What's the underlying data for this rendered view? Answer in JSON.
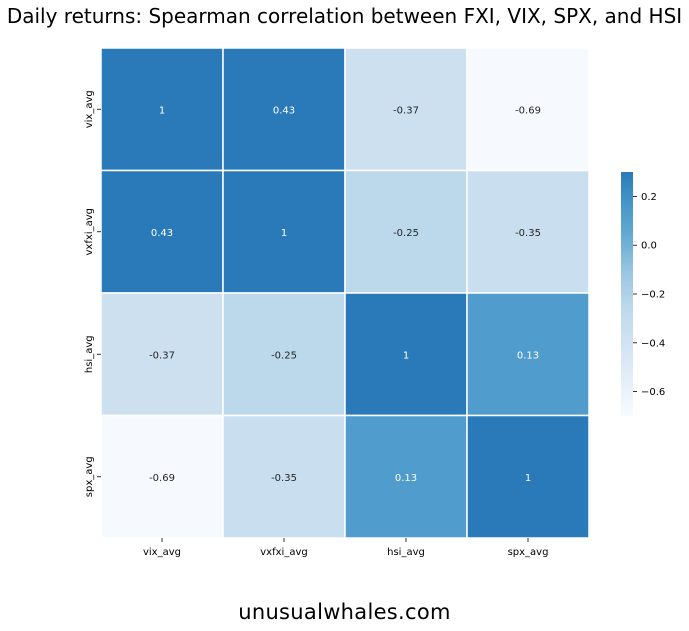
{
  "title": "Daily returns: Spearman correlation between FXI, VIX, SPX, and HSI",
  "footer": "unusualwhales.com",
  "chart_data": {
    "type": "heatmap",
    "title": "Daily returns: Spearman correlation between FXI, VIX, SPX, and HSI",
    "x_labels": [
      "vix_avg",
      "vxfxi_avg",
      "hsi_avg",
      "spx_avg"
    ],
    "y_labels": [
      "vix_avg",
      "vxfxi_avg",
      "hsi_avg",
      "spx_avg"
    ],
    "values": [
      [
        1,
        0.43,
        -0.37,
        -0.69
      ],
      [
        0.43,
        1,
        -0.25,
        -0.35
      ],
      [
        -0.37,
        -0.25,
        1,
        0.13
      ],
      [
        -0.69,
        -0.35,
        0.13,
        1
      ]
    ],
    "colorbar": {
      "vmin": -0.7,
      "vmax": 0.3,
      "ticks": [
        0.2,
        0.0,
        -0.2,
        -0.4,
        -0.6
      ],
      "tick_labels": [
        "0.2",
        "0.0",
        "−0.2",
        "−0.4",
        "−0.6"
      ],
      "colormap": "Blues",
      "low_color": "#f7fbff",
      "high_color": "#2a7ab9"
    },
    "grid": true,
    "cell_border_color": "#ffffff"
  }
}
